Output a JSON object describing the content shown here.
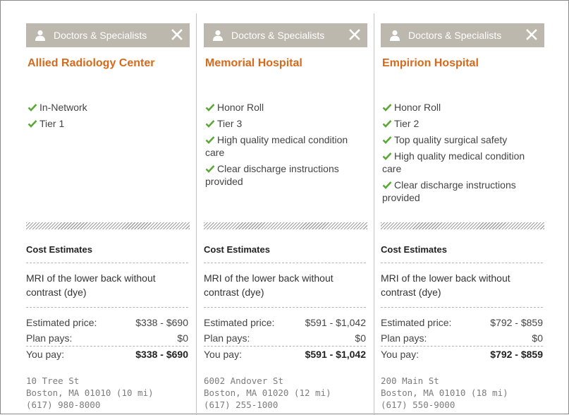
{
  "columns": [
    {
      "header_label": "Doctors & Specialists",
      "name": "Allied Radiology Center",
      "features": [
        "In-Network",
        "Tier 1"
      ],
      "cost_title": "Cost Estimates",
      "procedure": "MRI of the lower back without contrast (dye)",
      "estimated_label": "Estimated price:",
      "estimated_value": "$338 - $690",
      "plan_label": "Plan pays:",
      "plan_value": "$0",
      "you_label": "You pay:",
      "you_value": "$338 - $690",
      "address_line1": "10 Tree St",
      "address_line2": "Boston, MA 01010 (10 mi)",
      "phone": "(617) 980-8000"
    },
    {
      "header_label": "Doctors & Specialists",
      "name": "Memorial Hospital",
      "features": [
        "Honor Roll",
        "Tier 3",
        "High quality medical condition care",
        "Clear discharge instructions provided"
      ],
      "cost_title": "Cost Estimates",
      "procedure": "MRI of the lower back without contrast (dye)",
      "estimated_label": "Estimated price:",
      "estimated_value": "$591 - $1,042",
      "plan_label": "Plan pays:",
      "plan_value": "$0",
      "you_label": "You pay:",
      "you_value": "$591 - $1,042",
      "address_line1": "6002 Andover St",
      "address_line2": "Boston, MA 01020 (12 mi)",
      "phone": "(617) 255-1000"
    },
    {
      "header_label": "Doctors & Specialists",
      "name": "Empirion Hospital",
      "features": [
        "Honor Roll",
        "Tier 2",
        "Top quality surgical safety",
        "High quality medical condition care",
        "Clear discharge instructions provided"
      ],
      "cost_title": "Cost Estimates",
      "procedure": "MRI of the lower back without contrast (dye)",
      "estimated_label": "Estimated price:",
      "estimated_value": "$792 - $859",
      "plan_label": "Plan pays:",
      "plan_value": "$0",
      "you_label": "You pay:",
      "you_value": "$792 - $859",
      "address_line1": "200 Main St",
      "address_line2": "Boston, MA 01010 (18 mi)",
      "phone": "(617) 550-9000"
    }
  ],
  "icons": {
    "header": "person-icon",
    "close": "close-icon",
    "feature": "checkmark-icon"
  },
  "colors": {
    "accent": "#d36a1d",
    "header_bg": "#bdb8ad",
    "check": "#5aa838"
  }
}
